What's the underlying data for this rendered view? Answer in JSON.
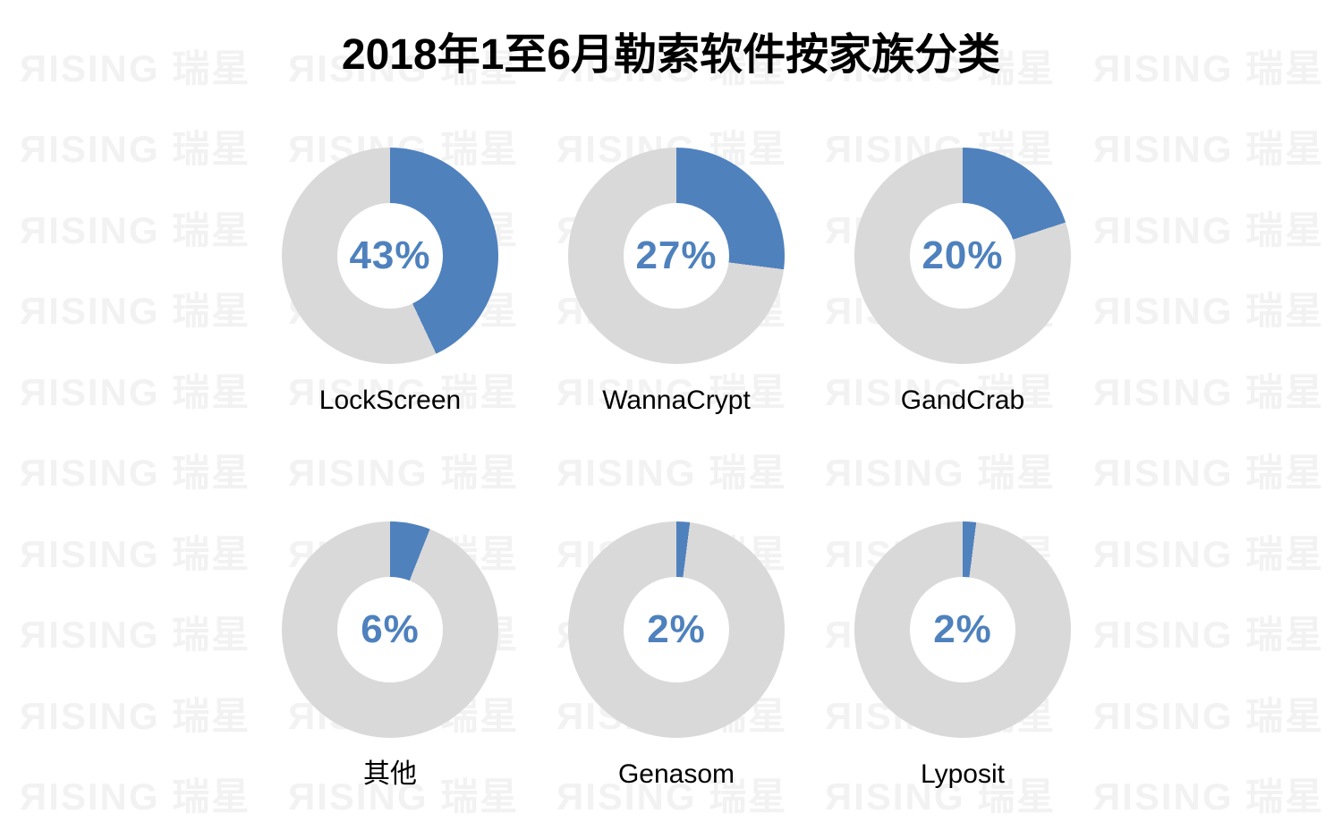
{
  "title": "2018年1至6月勒索软件按家族分类",
  "watermark": {
    "brand": "RISING 瑞星",
    "display_text": "ЯISING 瑞星",
    "color": "#f2f2f2",
    "columns": 5,
    "rows": 10
  },
  "colors": {
    "slice_blue": "#4f81bd",
    "ring_gray": "#d9d9d9",
    "percent_text_blue": "#4e81bd",
    "title_text": "#000000",
    "background": "#ffffff"
  },
  "chart_data": {
    "type": "pie",
    "subtype": "donut-multiples",
    "title": "2018年1至6月勒索软件按家族分类",
    "unit": "%",
    "layout": {
      "grid": "2 rows x 3 columns",
      "slice_start": "12 o'clock, clockwise",
      "value_position": "center of donut hole",
      "remainder_color": "gray"
    },
    "charts": [
      {
        "label": "LockScreen",
        "value": 43,
        "value_label": "43%"
      },
      {
        "label": "WannaCrypt",
        "value": 27,
        "value_label": "27%"
      },
      {
        "label": "GandCrab",
        "value": 20,
        "value_label": "20%"
      },
      {
        "label": "其他",
        "value": 6,
        "value_label": "6%"
      },
      {
        "label": "Genasom",
        "value": 2,
        "value_label": "2%"
      },
      {
        "label": "Lyposit",
        "value": 2,
        "value_label": "2%"
      }
    ]
  }
}
